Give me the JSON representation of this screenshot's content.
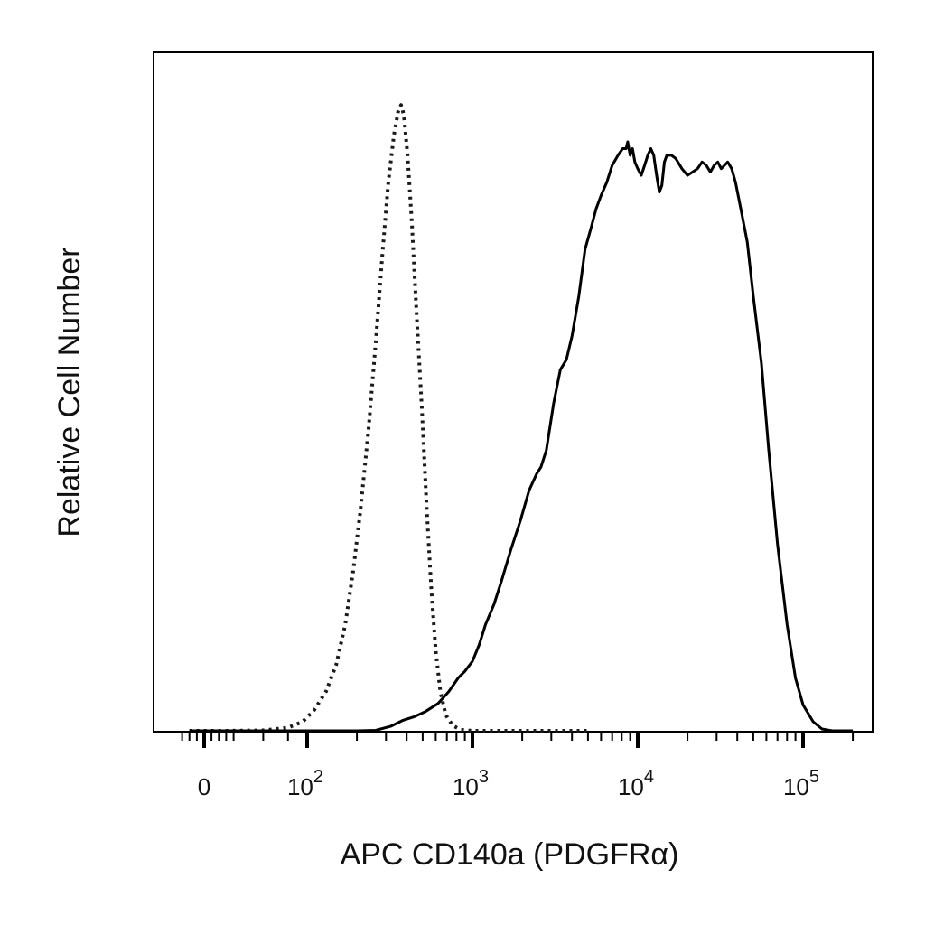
{
  "chart_data": {
    "type": "line",
    "xlabel": "APC CD140a (PDGFRα)",
    "ylabel": "Relative Cell Number",
    "x_scale": "biexponential",
    "xlim": [
      -30,
      200000
    ],
    "ylim": [
      0,
      100
    ],
    "grid": false,
    "x_tick_labels": [
      {
        "base": "0",
        "exp": "",
        "value": 0
      },
      {
        "base": "10",
        "exp": "2",
        "value": 100
      },
      {
        "base": "10",
        "exp": "3",
        "value": 1000
      },
      {
        "base": "10",
        "exp": "4",
        "value": 10000
      },
      {
        "base": "10",
        "exp": "5",
        "value": 100000
      }
    ],
    "series": [
      {
        "style": "dotted",
        "color": "#1a1a1a",
        "points": [
          [
            -20,
            0
          ],
          [
            0,
            0
          ],
          [
            30,
            0
          ],
          [
            60,
            0.2
          ],
          [
            80,
            0.6
          ],
          [
            95,
            1.5
          ],
          [
            110,
            3.2
          ],
          [
            130,
            6
          ],
          [
            150,
            10
          ],
          [
            170,
            16
          ],
          [
            190,
            24
          ],
          [
            210,
            33
          ],
          [
            235,
            45
          ],
          [
            260,
            58
          ],
          [
            285,
            71
          ],
          [
            310,
            82
          ],
          [
            335,
            89
          ],
          [
            355,
            92.5
          ],
          [
            370,
            93.5
          ],
          [
            385,
            92
          ],
          [
            405,
            86
          ],
          [
            430,
            76
          ],
          [
            460,
            62
          ],
          [
            495,
            48
          ],
          [
            530,
            33
          ],
          [
            565,
            21
          ],
          [
            600,
            12
          ],
          [
            640,
            6
          ],
          [
            690,
            2.5
          ],
          [
            760,
            0.9
          ],
          [
            850,
            0.3
          ],
          [
            1000,
            0.1
          ],
          [
            1200,
            0
          ],
          [
            2000,
            0
          ],
          [
            5000,
            0
          ]
        ]
      },
      {
        "style": "solid",
        "color": "#000000",
        "points": [
          [
            -20,
            0
          ],
          [
            100,
            0
          ],
          [
            200,
            0
          ],
          [
            260,
            0.2
          ],
          [
            320,
            0.8
          ],
          [
            380,
            1.7
          ],
          [
            440,
            2.2
          ],
          [
            520,
            3
          ],
          [
            620,
            4.2
          ],
          [
            720,
            6
          ],
          [
            820,
            8
          ],
          [
            900,
            9
          ],
          [
            1000,
            10.5
          ],
          [
            1100,
            13
          ],
          [
            1200,
            16
          ],
          [
            1350,
            19
          ],
          [
            1500,
            22.5
          ],
          [
            1700,
            27
          ],
          [
            1950,
            31.5
          ],
          [
            2200,
            36
          ],
          [
            2450,
            38.5
          ],
          [
            2600,
            39.5
          ],
          [
            2800,
            42
          ],
          [
            3100,
            49
          ],
          [
            3400,
            54
          ],
          [
            3700,
            55.5
          ],
          [
            4000,
            59
          ],
          [
            4400,
            65
          ],
          [
            4800,
            72
          ],
          [
            5200,
            75
          ],
          [
            5600,
            78
          ],
          [
            6000,
            80
          ],
          [
            6500,
            82
          ],
          [
            7000,
            84.5
          ],
          [
            7600,
            86
          ],
          [
            8100,
            87
          ],
          [
            8500,
            87
          ],
          [
            8700,
            88
          ],
          [
            9000,
            86
          ],
          [
            9300,
            87
          ],
          [
            9600,
            85
          ],
          [
            10000,
            84
          ],
          [
            10500,
            83
          ],
          [
            11000,
            84.5
          ],
          [
            11500,
            86
          ],
          [
            12000,
            87
          ],
          [
            12500,
            86
          ],
          [
            13000,
            83
          ],
          [
            13500,
            80.5
          ],
          [
            14000,
            81.5
          ],
          [
            14500,
            85
          ],
          [
            15000,
            86
          ],
          [
            16000,
            86
          ],
          [
            17000,
            85.5
          ],
          [
            18500,
            84
          ],
          [
            20000,
            83
          ],
          [
            21500,
            83.5
          ],
          [
            23000,
            84
          ],
          [
            24500,
            85
          ],
          [
            26000,
            84.5
          ],
          [
            27500,
            83.5
          ],
          [
            29000,
            84.5
          ],
          [
            30500,
            85
          ],
          [
            32000,
            84
          ],
          [
            33500,
            84.5
          ],
          [
            35000,
            85
          ],
          [
            37000,
            84
          ],
          [
            39000,
            82
          ],
          [
            42000,
            78
          ],
          [
            46000,
            73
          ],
          [
            50000,
            65
          ],
          [
            56000,
            55
          ],
          [
            62000,
            42
          ],
          [
            70000,
            28
          ],
          [
            80000,
            16
          ],
          [
            90000,
            8
          ],
          [
            100000,
            4
          ],
          [
            115000,
            1.5
          ],
          [
            130000,
            0.4
          ],
          [
            150000,
            0.1
          ],
          [
            200000,
            0
          ]
        ]
      }
    ]
  }
}
